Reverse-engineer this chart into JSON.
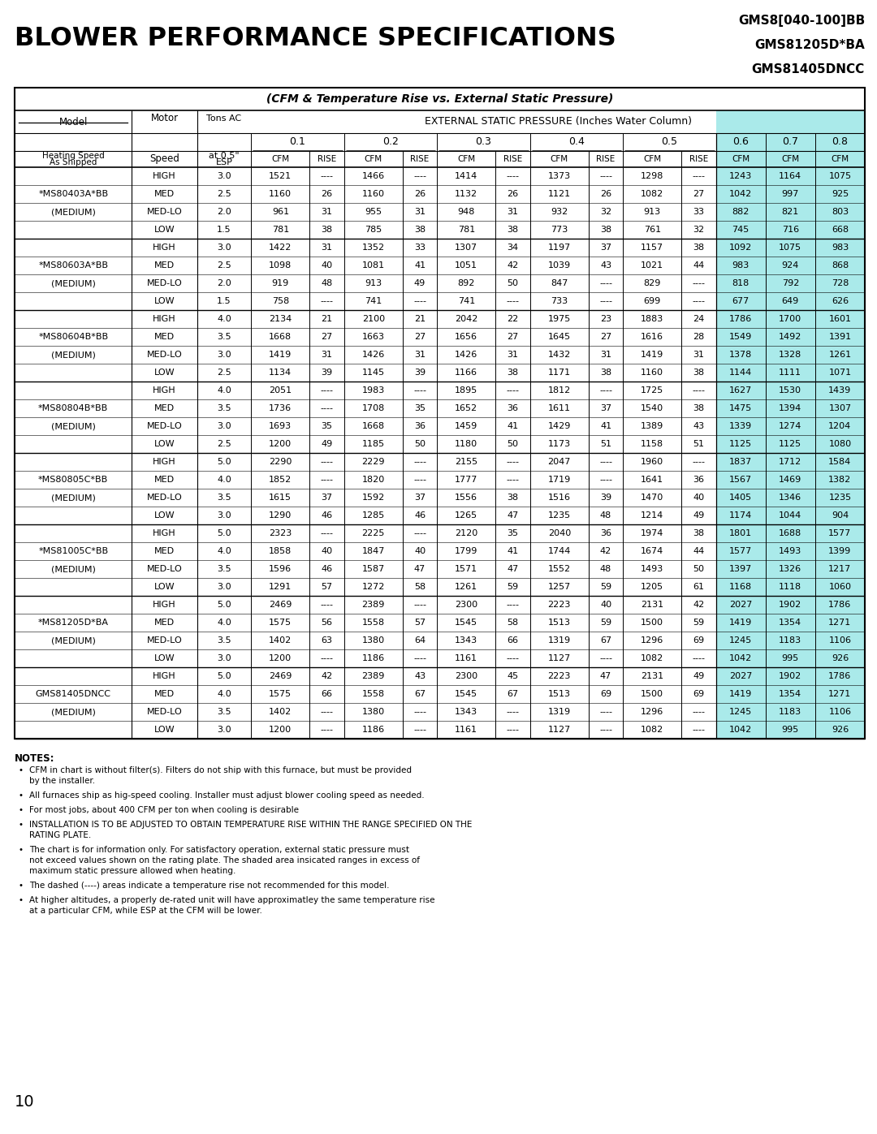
{
  "title_top_right": [
    "GMS8[040-100]BB",
    "GMS81205D*BA",
    "GMS81405DNCC"
  ],
  "main_title": "BLOWER PERFORMANCE SPECIFICATIONS",
  "subtitle": "(CFM & Temperature Rise vs. External Static Pressure)",
  "shaded_bg": "#aaeaea",
  "models": [
    {
      "name": "*MS80403A*BB",
      "subname": "(MEDIUM)",
      "rows": [
        {
          "speed": "HIGH",
          "tons": "3.0",
          "d": [
            "1521",
            "----",
            "1466",
            "----",
            "1414",
            "----",
            "1373",
            "----",
            "1298",
            "----",
            "1243",
            "1164",
            "1075"
          ]
        },
        {
          "speed": "MED",
          "tons": "2.5",
          "d": [
            "1160",
            "26",
            "1160",
            "26",
            "1132",
            "26",
            "1121",
            "26",
            "1082",
            "27",
            "1042",
            "997",
            "925"
          ]
        },
        {
          "speed": "MED-LO",
          "tons": "2.0",
          "d": [
            "961",
            "31",
            "955",
            "31",
            "948",
            "31",
            "932",
            "32",
            "913",
            "33",
            "882",
            "821",
            "803"
          ]
        },
        {
          "speed": "LOW",
          "tons": "1.5",
          "d": [
            "781",
            "38",
            "785",
            "38",
            "781",
            "38",
            "773",
            "38",
            "761",
            "32",
            "745",
            "716",
            "668"
          ]
        }
      ]
    },
    {
      "name": "*MS80603A*BB",
      "subname": "(MEDIUM)",
      "rows": [
        {
          "speed": "HIGH",
          "tons": "3.0",
          "d": [
            "1422",
            "31",
            "1352",
            "33",
            "1307",
            "34",
            "1197",
            "37",
            "1157",
            "38",
            "1092",
            "1075",
            "983"
          ]
        },
        {
          "speed": "MED",
          "tons": "2.5",
          "d": [
            "1098",
            "40",
            "1081",
            "41",
            "1051",
            "42",
            "1039",
            "43",
            "1021",
            "44",
            "983",
            "924",
            "868"
          ]
        },
        {
          "speed": "MED-LO",
          "tons": "2.0",
          "d": [
            "919",
            "48",
            "913",
            "49",
            "892",
            "50",
            "847",
            "----",
            "829",
            "----",
            "818",
            "792",
            "728"
          ]
        },
        {
          "speed": "LOW",
          "tons": "1.5",
          "d": [
            "758",
            "----",
            "741",
            "----",
            "741",
            "----",
            "733",
            "----",
            "699",
            "----",
            "677",
            "649",
            "626"
          ]
        }
      ]
    },
    {
      "name": "*MS80604B*BB",
      "subname": "(MEDIUM)",
      "rows": [
        {
          "speed": "HIGH",
          "tons": "4.0",
          "d": [
            "2134",
            "21",
            "2100",
            "21",
            "2042",
            "22",
            "1975",
            "23",
            "1883",
            "24",
            "1786",
            "1700",
            "1601"
          ]
        },
        {
          "speed": "MED",
          "tons": "3.5",
          "d": [
            "1668",
            "27",
            "1663",
            "27",
            "1656",
            "27",
            "1645",
            "27",
            "1616",
            "28",
            "1549",
            "1492",
            "1391"
          ]
        },
        {
          "speed": "MED-LO",
          "tons": "3.0",
          "d": [
            "1419",
            "31",
            "1426",
            "31",
            "1426",
            "31",
            "1432",
            "31",
            "1419",
            "31",
            "1378",
            "1328",
            "1261"
          ]
        },
        {
          "speed": "LOW",
          "tons": "2.5",
          "d": [
            "1134",
            "39",
            "1145",
            "39",
            "1166",
            "38",
            "1171",
            "38",
            "1160",
            "38",
            "1144",
            "1111",
            "1071"
          ]
        }
      ]
    },
    {
      "name": "*MS80804B*BB",
      "subname": "(MEDIUM)",
      "rows": [
        {
          "speed": "HIGH",
          "tons": "4.0",
          "d": [
            "2051",
            "----",
            "1983",
            "----",
            "1895",
            "----",
            "1812",
            "----",
            "1725",
            "----",
            "1627",
            "1530",
            "1439"
          ]
        },
        {
          "speed": "MED",
          "tons": "3.5",
          "d": [
            "1736",
            "----",
            "1708",
            "35",
            "1652",
            "36",
            "1611",
            "37",
            "1540",
            "38",
            "1475",
            "1394",
            "1307"
          ]
        },
        {
          "speed": "MED-LO",
          "tons": "3.0",
          "d": [
            "1693",
            "35",
            "1668",
            "36",
            "1459",
            "41",
            "1429",
            "41",
            "1389",
            "43",
            "1339",
            "1274",
            "1204"
          ]
        },
        {
          "speed": "LOW",
          "tons": "2.5",
          "d": [
            "1200",
            "49",
            "1185",
            "50",
            "1180",
            "50",
            "1173",
            "51",
            "1158",
            "51",
            "1125",
            "1125",
            "1080"
          ]
        }
      ]
    },
    {
      "name": "*MS80805C*BB",
      "subname": "(MEDIUM)",
      "rows": [
        {
          "speed": "HIGH",
          "tons": "5.0",
          "d": [
            "2290",
            "----",
            "2229",
            "----",
            "2155",
            "----",
            "2047",
            "----",
            "1960",
            "----",
            "1837",
            "1712",
            "1584"
          ]
        },
        {
          "speed": "MED",
          "tons": "4.0",
          "d": [
            "1852",
            "----",
            "1820",
            "----",
            "1777",
            "----",
            "1719",
            "----",
            "1641",
            "36",
            "1567",
            "1469",
            "1382"
          ]
        },
        {
          "speed": "MED-LO",
          "tons": "3.5",
          "d": [
            "1615",
            "37",
            "1592",
            "37",
            "1556",
            "38",
            "1516",
            "39",
            "1470",
            "40",
            "1405",
            "1346",
            "1235"
          ]
        },
        {
          "speed": "LOW",
          "tons": "3.0",
          "d": [
            "1290",
            "46",
            "1285",
            "46",
            "1265",
            "47",
            "1235",
            "48",
            "1214",
            "49",
            "1174",
            "1044",
            "904"
          ]
        }
      ]
    },
    {
      "name": "*MS81005C*BB",
      "subname": "(MEDIUM)",
      "rows": [
        {
          "speed": "HIGH",
          "tons": "5.0",
          "d": [
            "2323",
            "----",
            "2225",
            "----",
            "2120",
            "35",
            "2040",
            "36",
            "1974",
            "38",
            "1801",
            "1688",
            "1577"
          ]
        },
        {
          "speed": "MED",
          "tons": "4.0",
          "d": [
            "1858",
            "40",
            "1847",
            "40",
            "1799",
            "41",
            "1744",
            "42",
            "1674",
            "44",
            "1577",
            "1493",
            "1399"
          ]
        },
        {
          "speed": "MED-LO",
          "tons": "3.5",
          "d": [
            "1596",
            "46",
            "1587",
            "47",
            "1571",
            "47",
            "1552",
            "48",
            "1493",
            "50",
            "1397",
            "1326",
            "1217"
          ]
        },
        {
          "speed": "LOW",
          "tons": "3.0",
          "d": [
            "1291",
            "57",
            "1272",
            "58",
            "1261",
            "59",
            "1257",
            "59",
            "1205",
            "61",
            "1168",
            "1118",
            "1060"
          ]
        }
      ]
    },
    {
      "name": "*MS81205D*BA",
      "subname": "(MEDIUM)",
      "rows": [
        {
          "speed": "HIGH",
          "tons": "5.0",
          "d": [
            "2469",
            "----",
            "2389",
            "----",
            "2300",
            "----",
            "2223",
            "40",
            "2131",
            "42",
            "2027",
            "1902",
            "1786"
          ]
        },
        {
          "speed": "MED",
          "tons": "4.0",
          "d": [
            "1575",
            "56",
            "1558",
            "57",
            "1545",
            "58",
            "1513",
            "59",
            "1500",
            "59",
            "1419",
            "1354",
            "1271"
          ]
        },
        {
          "speed": "MED-LO",
          "tons": "3.5",
          "d": [
            "1402",
            "63",
            "1380",
            "64",
            "1343",
            "66",
            "1319",
            "67",
            "1296",
            "69",
            "1245",
            "1183",
            "1106"
          ]
        },
        {
          "speed": "LOW",
          "tons": "3.0",
          "d": [
            "1200",
            "----",
            "1186",
            "----",
            "1161",
            "----",
            "1127",
            "----",
            "1082",
            "----",
            "1042",
            "995",
            "926"
          ]
        }
      ]
    },
    {
      "name": "GMS81405DNCC",
      "subname": "(MEDIUM)",
      "rows": [
        {
          "speed": "HIGH",
          "tons": "5.0",
          "d": [
            "2469",
            "42",
            "2389",
            "43",
            "2300",
            "45",
            "2223",
            "47",
            "2131",
            "49",
            "2027",
            "1902",
            "1786"
          ]
        },
        {
          "speed": "MED",
          "tons": "4.0",
          "d": [
            "1575",
            "66",
            "1558",
            "67",
            "1545",
            "67",
            "1513",
            "69",
            "1500",
            "69",
            "1419",
            "1354",
            "1271"
          ]
        },
        {
          "speed": "MED-LO",
          "tons": "3.5",
          "d": [
            "1402",
            "----",
            "1380",
            "----",
            "1343",
            "----",
            "1319",
            "----",
            "1296",
            "----",
            "1245",
            "1183",
            "1106"
          ]
        },
        {
          "speed": "LOW",
          "tons": "3.0",
          "d": [
            "1200",
            "----",
            "1186",
            "----",
            "1161",
            "----",
            "1127",
            "----",
            "1082",
            "----",
            "1042",
            "995",
            "926"
          ]
        }
      ]
    }
  ],
  "notes": [
    "CFM in chart is without filter(s). Filters do not ship with this furnace, but must be provided by the installer.",
    "All furnaces ship as hig-speed cooling. Installer must adjust blower cooling speed as needed.",
    "For most jobs, about 400 CFM per ton when cooling is desirable",
    "INSTALLATION IS TO BE ADJUSTED TO OBTAIN TEMPERATURE RISE WITHIN THE RANGE SPECIFIED ON THE RATING PLATE.",
    "The chart is for information only. For satisfactory operation, external static pressure must not exceed values shown on the rating plate. The shaded area insicated ranges in excess of maximum static pressure allowed when heating.",
    "The dashed (----) areas indicate a temperature rise not recommended for this model.",
    "At higher altitudes, a properly de-rated unit will have approximatley the same temperature rise at a particular CFM, while ESP at the CFM will be lower."
  ],
  "page_number": "10"
}
